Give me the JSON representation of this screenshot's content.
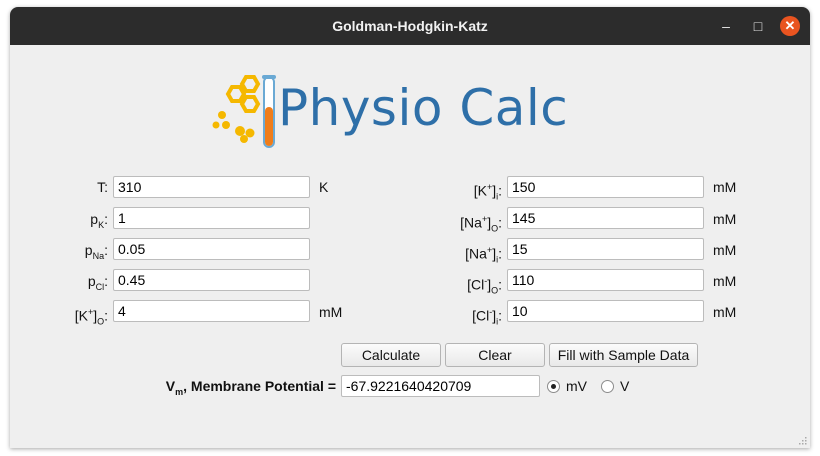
{
  "window": {
    "title": "Goldman-Hodgkin-Katz",
    "minimize": "–",
    "maximize": "□",
    "close": "✕"
  },
  "logo": {
    "text": "Physio Calc",
    "icon": "hexagon-molecules-test-tube-icon"
  },
  "left_fields": [
    {
      "label": "T:",
      "value": "310",
      "unit": "K"
    },
    {
      "label_main": "p",
      "label_sub": "K",
      "label_end": ":",
      "value": "1",
      "unit": ""
    },
    {
      "label_main": "p",
      "label_sub": "Na",
      "label_end": ":",
      "value": "0.05",
      "unit": ""
    },
    {
      "label_main": "p",
      "label_sub": "Cl",
      "label_end": ":",
      "value": "0.45",
      "unit": ""
    },
    {
      "label_main": "[K",
      "label_sup": "+",
      "label_mid": "]",
      "label_sub": "O",
      "label_end": ":",
      "value": "4",
      "unit": "mM"
    }
  ],
  "right_fields": [
    {
      "label_main": "[K",
      "label_sup": "+",
      "label_mid": "]",
      "label_sub": "i",
      "label_end": ":",
      "value": "150",
      "unit": "mM"
    },
    {
      "label_main": "[Na",
      "label_sup": "+",
      "label_mid": "]",
      "label_sub": "O",
      "label_end": ":",
      "value": "145",
      "unit": "mM"
    },
    {
      "label_main": "[Na",
      "label_sup": "+",
      "label_mid": "]",
      "label_sub": "i",
      "label_end": ":",
      "value": "15",
      "unit": "mM"
    },
    {
      "label_main": "[Cl",
      "label_sup": "-",
      "label_mid": "]",
      "label_sub": "O",
      "label_end": ":",
      "value": "110",
      "unit": "mM"
    },
    {
      "label_main": "[Cl",
      "label_sup": "-",
      "label_mid": "]",
      "label_sub": "i",
      "label_end": ":",
      "value": "10",
      "unit": "mM"
    }
  ],
  "buttons": {
    "calculate": "Calculate",
    "clear": "Clear",
    "sample": "Fill with Sample Data"
  },
  "result": {
    "label_main": "V",
    "label_sub": "m",
    "label_rest": ", Membrane Potential =",
    "value": "-67.9221640420709",
    "unit_mv": "mV",
    "unit_v": "V",
    "selected": "mV"
  },
  "colors": {
    "logo_blue": "#2e6fa8",
    "logo_yellow": "#f5b800",
    "tube_orange": "#ef7d1a",
    "close_orange": "#e95420"
  }
}
